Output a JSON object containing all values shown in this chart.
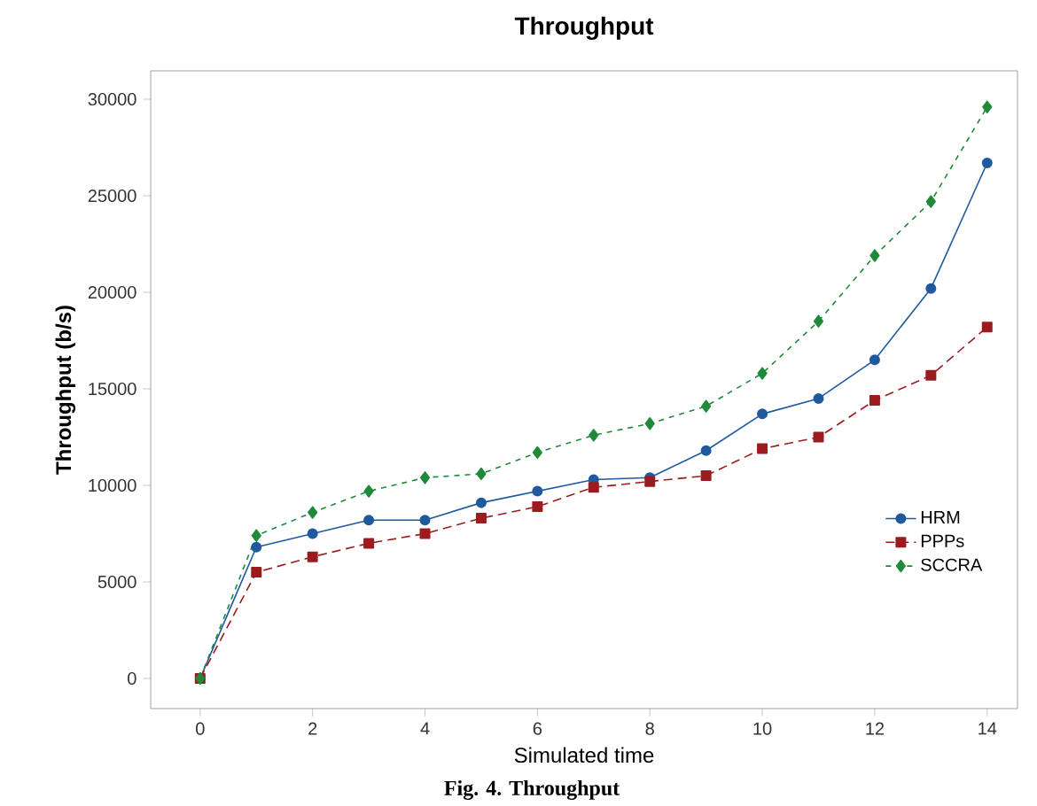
{
  "chart_data": {
    "type": "line",
    "title": "Throughput",
    "xlabel": "Simulated time",
    "ylabel": "Throughput (b/s)",
    "annotations": [
      "Fig. 4. Throughput"
    ],
    "x": [
      0,
      1,
      2,
      3,
      4,
      5,
      6,
      7,
      8,
      9,
      10,
      11,
      12,
      13,
      14
    ],
    "series": [
      {
        "name": "HRM",
        "color": "#1f5a9e",
        "marker": "circle",
        "line_style": "solid",
        "values": [
          0,
          6800,
          7500,
          8200,
          8200,
          9100,
          9700,
          10300,
          10400,
          11800,
          13700,
          14500,
          16500,
          20200,
          26700
        ]
      },
      {
        "name": "PPPs",
        "color": "#9b1c1f",
        "marker": "square",
        "line_style": "dashed",
        "values": [
          0,
          5500,
          6300,
          7000,
          7500,
          8300,
          8900,
          9900,
          10200,
          10500,
          11900,
          12500,
          14400,
          15700,
          18200
        ]
      },
      {
        "name": "SCCRA",
        "color": "#1e8a3a",
        "marker": "diamond",
        "line_style": "dotted",
        "values": [
          0,
          7400,
          8600,
          9700,
          10400,
          10600,
          11700,
          12600,
          13200,
          14100,
          15800,
          18500,
          21900,
          24700,
          29600
        ]
      }
    ],
    "xlim": [
      -0.88,
      14.54
    ],
    "ylim": [
      -1560,
      31470
    ],
    "xticks": [
      0,
      2,
      4,
      6,
      8,
      10,
      12,
      14
    ],
    "yticks": [
      0,
      5000,
      10000,
      15000,
      20000,
      25000,
      30000
    ],
    "grid": false,
    "legend": "bottom right"
  }
}
